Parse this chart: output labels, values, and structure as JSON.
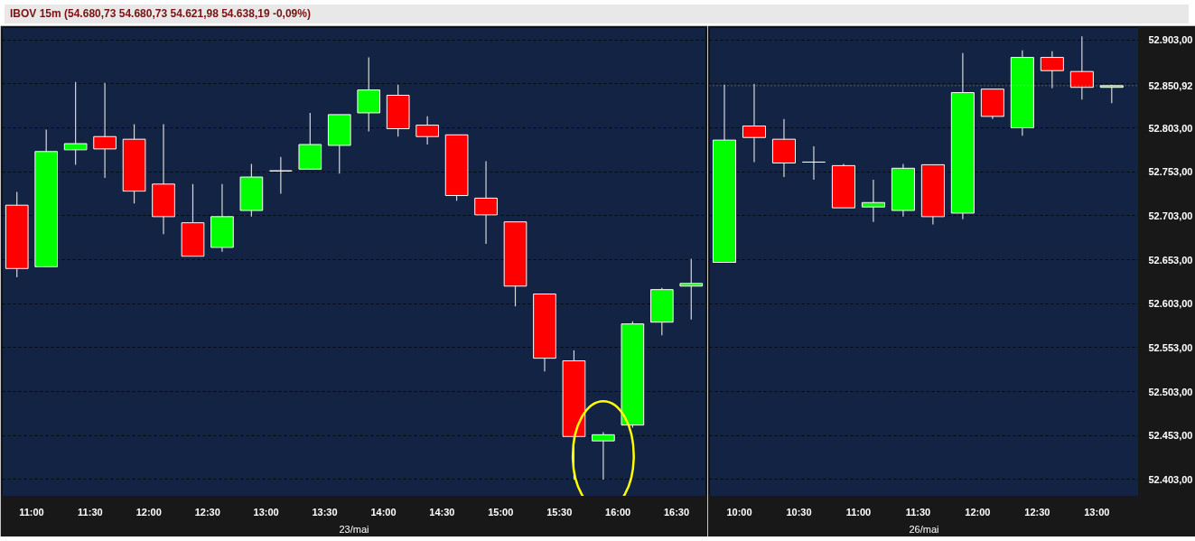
{
  "chart_data": [
    {
      "type": "candlestick",
      "title": "IBOV 15m (54.680,73  54.680,73  54.621,98  54.638,19  -0,09%)",
      "xlabel": "23/mai",
      "x": [
        10.875,
        11.125,
        11.375,
        11.625,
        11.875,
        12.125,
        12.375,
        12.625,
        12.875,
        13.125,
        13.375,
        13.625,
        13.875,
        14.125,
        14.375,
        14.625,
        14.875,
        15.125,
        15.375,
        15.625,
        15.875,
        16.125,
        16.375,
        16.625
      ],
      "ohlc": [
        [
          52715,
          52730,
          52633,
          52643
        ],
        [
          52645,
          52801,
          52645,
          52776
        ],
        [
          52778,
          52855,
          52761,
          52785
        ],
        [
          52793,
          52854,
          52746,
          52779
        ],
        [
          52790,
          52807,
          52717,
          52731
        ],
        [
          52739,
          52807,
          52682,
          52702
        ],
        [
          52695,
          52739,
          52657,
          52657
        ],
        [
          52667,
          52739,
          52662,
          52702
        ],
        [
          52709,
          52762,
          52702,
          52747
        ],
        [
          52754,
          52770,
          52728,
          52754
        ],
        [
          52756,
          52820,
          52756,
          52784
        ],
        [
          52783,
          52818,
          52751,
          52818
        ],
        [
          52820,
          52883,
          52799,
          52846
        ],
        [
          52840,
          52852,
          52793,
          52802
        ],
        [
          52806,
          52816,
          52784,
          52793
        ],
        [
          52795,
          52795,
          52720,
          52726
        ],
        [
          52723,
          52765,
          52671,
          52704
        ],
        [
          52696,
          52696,
          52600,
          52623
        ],
        [
          52614,
          52614,
          52526,
          52541
        ],
        [
          52538,
          52550,
          52403,
          52452
        ],
        [
          52447,
          52457,
          52403,
          52454
        ],
        [
          52465,
          52583,
          52462,
          52580
        ],
        [
          52582,
          52621,
          52567,
          52619
        ],
        [
          52623,
          52654,
          52585,
          52626
        ]
      ],
      "xlim": [
        10.75,
        16.75
      ],
      "xticks": [
        {
          "value": 11,
          "label": "11:00"
        },
        {
          "value": 11.5,
          "label": "11:30"
        },
        {
          "value": 12,
          "label": "12:00"
        },
        {
          "value": 12.5,
          "label": "12:30"
        },
        {
          "value": 13,
          "label": "13:00"
        },
        {
          "value": 13.5,
          "label": "13:30"
        },
        {
          "value": 14,
          "label": "14:00"
        },
        {
          "value": 14.5,
          "label": "14:30"
        },
        {
          "value": 15,
          "label": "15:00"
        },
        {
          "value": 15.5,
          "label": "15:30"
        },
        {
          "value": 16,
          "label": "16:00"
        },
        {
          "value": 16.5,
          "label": "16:30"
        }
      ],
      "ylim": [
        52384,
        52917
      ],
      "yticks": [
        {
          "value": 52403,
          "label": null
        },
        {
          "value": 52453,
          "label": null
        },
        {
          "value": 52503,
          "label": null
        },
        {
          "value": 52553,
          "label": null
        },
        {
          "value": 52603,
          "label": null
        },
        {
          "value": 52653,
          "label": null
        },
        {
          "value": 52703,
          "label": null
        },
        {
          "value": 52753,
          "label": null
        },
        {
          "value": 52803,
          "label": null
        },
        {
          "value": 52853,
          "label": null
        },
        {
          "value": 52903,
          "label": null
        }
      ],
      "grid": "y",
      "tick_labels": "x"
    },
    {
      "type": "candlestick",
      "xlabel": "26/mai",
      "x": [
        9.875,
        10.125,
        10.375,
        10.625,
        10.875,
        11.125,
        11.375,
        11.625,
        11.875,
        12.125,
        12.375,
        12.625,
        12.875,
        13.125
      ],
      "ohlc": [
        [
          52650,
          52852,
          52650,
          52789
        ],
        [
          52805,
          52853,
          52764,
          52792
        ],
        [
          52790,
          52813,
          52747,
          52763
        ],
        [
          52764,
          52782,
          52744,
          52764
        ],
        [
          52760,
          52762,
          52712,
          52712
        ],
        [
          52713,
          52744,
          52696,
          52718
        ],
        [
          52709,
          52762,
          52702,
          52757
        ],
        [
          52761,
          52761,
          52693,
          52702
        ],
        [
          52706,
          52888,
          52699,
          52843
        ],
        [
          52847,
          52847,
          52813,
          52816
        ],
        [
          52803,
          52891,
          52794,
          52883
        ],
        [
          52883,
          52890,
          52848,
          52868
        ],
        [
          52867,
          52907,
          52835,
          52849
        ],
        [
          52849,
          52852,
          52831,
          52850.92
        ]
      ],
      "xlim": [
        9.75,
        13.35
      ],
      "xticks": [
        {
          "value": 10,
          "label": "10:00"
        },
        {
          "value": 10.5,
          "label": "10:30"
        },
        {
          "value": 11,
          "label": "11:00"
        },
        {
          "value": 11.5,
          "label": "11:30"
        },
        {
          "value": 12,
          "label": "12:00"
        },
        {
          "value": 12.5,
          "label": "12:30"
        },
        {
          "value": 13,
          "label": "13:00"
        }
      ],
      "ylim": [
        52384,
        52917
      ],
      "yticks": [
        {
          "value": 52403,
          "label": "52.403,00"
        },
        {
          "value": 52453,
          "label": "52.453,00"
        },
        {
          "value": 52503,
          "label": "52.503,00"
        },
        {
          "value": 52553,
          "label": "52.553,00"
        },
        {
          "value": 52603,
          "label": "52.603,00"
        },
        {
          "value": 52653,
          "label": "52.653,00"
        },
        {
          "value": 52703,
          "label": "52.703,00"
        },
        {
          "value": 52753,
          "label": "52.753,00"
        },
        {
          "value": 52803,
          "label": "52.803,00"
        },
        {
          "value": 52853,
          "label": null
        },
        {
          "value": 52903,
          "label": "52.903,00"
        }
      ],
      "ref_lines": [
        {
          "axis": "y",
          "value": 52850.92,
          "label": "52.850,92"
        }
      ],
      "grid": "y"
    }
  ]
}
